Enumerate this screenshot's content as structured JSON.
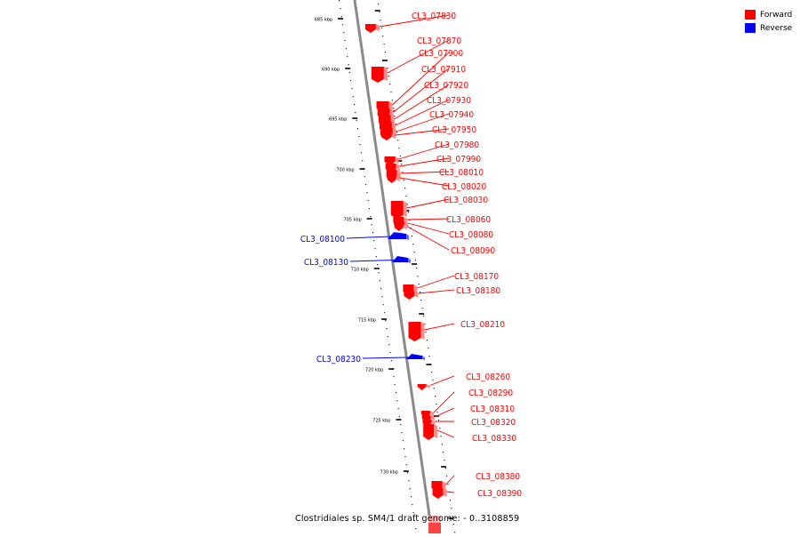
{
  "legend": {
    "forward_label": "Forward",
    "reverse_label": "Reverse",
    "forward_color": "#ff0000",
    "reverse_color": "#0000ff"
  },
  "caption": "Clostridiales sp. SM4/1 draft genome: - 0..3108859",
  "ticks": [
    "685 kbp",
    "690 kbp",
    "695 kbp",
    "700 kbp",
    "705 kbp",
    "710 kbp",
    "715 kbp",
    "720 kbp",
    "725 kbp",
    "730 kbp"
  ],
  "genes": [
    {
      "label": "CL3_07830",
      "strand": "forward"
    },
    {
      "label": "CL3_07870",
      "strand": "forward"
    },
    {
      "label": "CL3_07900",
      "strand": "forward"
    },
    {
      "label": "CL3_07910",
      "strand": "forward"
    },
    {
      "label": "CL3_07920",
      "strand": "forward"
    },
    {
      "label": "CL3_07930",
      "strand": "forward"
    },
    {
      "label": "CL3_07940",
      "strand": "forward"
    },
    {
      "label": "CL3_07950",
      "strand": "forward"
    },
    {
      "label": "CL3_07980",
      "strand": "forward"
    },
    {
      "label": "CL3_07990",
      "strand": "forward"
    },
    {
      "label": "CL3_08010",
      "strand": "forward"
    },
    {
      "label": "CL3_08020",
      "strand": "forward"
    },
    {
      "label": "CL3_08030",
      "strand": "forward"
    },
    {
      "label": "CL3_08060",
      "strand": "forward"
    },
    {
      "label": "CL3_08080",
      "strand": "forward"
    },
    {
      "label": "CL3_08090",
      "strand": "forward"
    },
    {
      "label": "CL3_08100",
      "strand": "reverse"
    },
    {
      "label": "CL3_08130",
      "strand": "reverse"
    },
    {
      "label": "CL3_08170",
      "strand": "forward"
    },
    {
      "label": "CL3_08180",
      "strand": "forward"
    },
    {
      "label": "CL3_08210",
      "strand": "forward"
    },
    {
      "label": "CL3_08230",
      "strand": "reverse"
    },
    {
      "label": "CL3_08260",
      "strand": "forward"
    },
    {
      "label": "CL3_08290",
      "strand": "forward"
    },
    {
      "label": "CL3_08310",
      "strand": "forward"
    },
    {
      "label": "CL3_08320",
      "strand": "forward"
    },
    {
      "label": "CL3_08330",
      "strand": "forward"
    },
    {
      "label": "CL3_08380",
      "strand": "forward"
    },
    {
      "label": "CL3_08390",
      "strand": "forward"
    }
  ]
}
